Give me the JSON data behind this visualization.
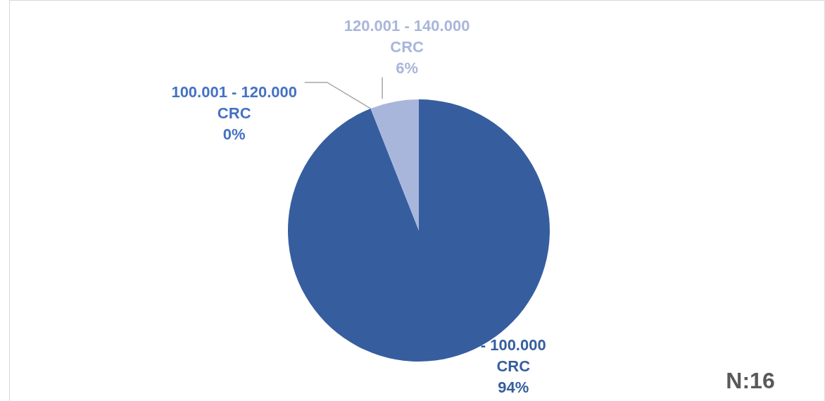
{
  "chart_data": {
    "type": "pie",
    "categories": [
      "- 100.000 CRC",
      "100.001 - 120.000 CRC",
      "120.001 - 140.000 CRC"
    ],
    "values": [
      94,
      0,
      6
    ],
    "colors": [
      "#365e9f",
      "#4472c4",
      "#a9b6db"
    ],
    "value_labels": [
      "94%",
      "0%",
      "6%"
    ],
    "annotations": [
      "N:16"
    ]
  }
}
